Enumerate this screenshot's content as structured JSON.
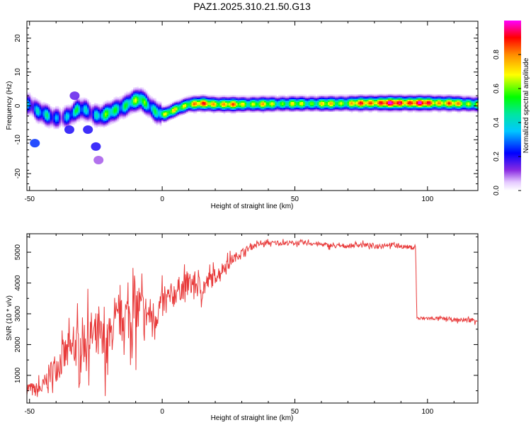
{
  "title": "PAZ1.2025.310.21.50.G13",
  "chart_data": [
    {
      "type": "heatmap",
      "xlabel": "Height of straight line (km)",
      "ylabel": "Frequency (Hz)",
      "xlim": [
        -51,
        119
      ],
      "ylim": [
        -25,
        25
      ],
      "xticks": [
        -50,
        0,
        50,
        100
      ],
      "yticks": [
        -20,
        -10,
        0,
        10,
        20
      ],
      "colorbar": {
        "label": "Normalized spectral amplitude",
        "range": [
          0,
          1
        ],
        "ticks": [
          0.0,
          0.2,
          0.4,
          0.6,
          0.8
        ],
        "colormap": "rainbow (white-violet-blue-cyan-green-yellow-orange-red-magenta)"
      },
      "ridge": {
        "x": [
          -50,
          -47,
          -44,
          -41,
          -38,
          -35,
          -32,
          -29,
          -26,
          -23,
          -20,
          -17,
          -14,
          -11,
          -8,
          -5,
          -2,
          1,
          5,
          10,
          15,
          20,
          30,
          40,
          50,
          60,
          70,
          80,
          90,
          100,
          110,
          119
        ],
        "freq": [
          0.5,
          -1.5,
          -2.5,
          -3.5,
          -3.5,
          -3,
          -1,
          -1,
          -2.5,
          -3,
          -2,
          -1,
          0,
          1.5,
          2,
          0,
          -2,
          -2.5,
          -1,
          0.5,
          0.8,
          0.5,
          0.5,
          0.6,
          0.7,
          0.7,
          0.8,
          0.9,
          0.9,
          0.9,
          0.8,
          0.5
        ],
        "amplitude": [
          0.35,
          0.3,
          0.3,
          0.3,
          0.3,
          0.3,
          0.35,
          0.35,
          0.35,
          0.4,
          0.45,
          0.45,
          0.5,
          0.5,
          0.5,
          0.45,
          0.5,
          0.55,
          0.6,
          0.7,
          0.75,
          0.75,
          0.65,
          0.6,
          0.55,
          0.6,
          0.65,
          0.85,
          0.9,
          0.85,
          0.7,
          0.6
        ]
      },
      "blobs": [
        {
          "x": -48,
          "freq": -11,
          "amplitude": 0.25
        },
        {
          "x": -35,
          "freq": -7,
          "amplitude": 0.2
        },
        {
          "x": -28,
          "freq": -7,
          "amplitude": 0.2
        },
        {
          "x": -25,
          "freq": -12,
          "amplitude": 0.2
        },
        {
          "x": -24,
          "freq": -16,
          "amplitude": 0.1
        },
        {
          "x": -33,
          "freq": 3,
          "amplitude": 0.15
        }
      ]
    },
    {
      "type": "line",
      "xlabel": "Height of straight line (km)",
      "ylabel": "SNR (10 * v/v)",
      "xlim": [
        -51,
        119
      ],
      "ylim": [
        100,
        5600
      ],
      "xticks": [
        -50,
        0,
        50,
        100
      ],
      "yticks": [
        1000,
        2000,
        3000,
        4000,
        5000
      ],
      "color": "#e83a3a",
      "series": [
        {
          "x": [
            -51,
            -48,
            -45,
            -42,
            -39,
            -36,
            -33,
            -30,
            -27,
            -24,
            -21,
            -18,
            -15,
            -12,
            -9,
            -6,
            -3,
            0,
            3,
            6,
            9,
            12,
            15,
            18,
            21,
            24,
            27,
            30,
            33,
            36,
            40,
            45,
            50,
            55,
            60,
            65,
            70,
            75,
            80,
            85,
            90,
            94,
            95.5,
            96,
            100,
            105,
            110,
            115,
            119
          ],
          "y": [
            600,
            500,
            600,
            1100,
            1400,
            1700,
            1900,
            2100,
            2300,
            2200,
            1900,
            2600,
            2900,
            3000,
            3100,
            3000,
            2900,
            3300,
            3500,
            3800,
            3900,
            4000,
            3800,
            4100,
            4300,
            4600,
            4800,
            5000,
            5150,
            5250,
            5300,
            5300,
            5300,
            5300,
            5250,
            5200,
            5200,
            5250,
            5200,
            5250,
            5200,
            5150,
            5200,
            2850,
            2850,
            2850,
            2800,
            2800,
            2800
          ],
          "noise": [
            300,
            300,
            400,
            500,
            700,
            800,
            900,
            1000,
            1000,
            1100,
            1000,
            700,
            800,
            1200,
            1300,
            800,
            700,
            600,
            600,
            500,
            500,
            500,
            500,
            400,
            300,
            250,
            200,
            150,
            120,
            100,
            90,
            90,
            90,
            90,
            90,
            90,
            90,
            90,
            90,
            90,
            90,
            90,
            90,
            80,
            70,
            70,
            70,
            100,
            100
          ]
        }
      ]
    }
  ]
}
